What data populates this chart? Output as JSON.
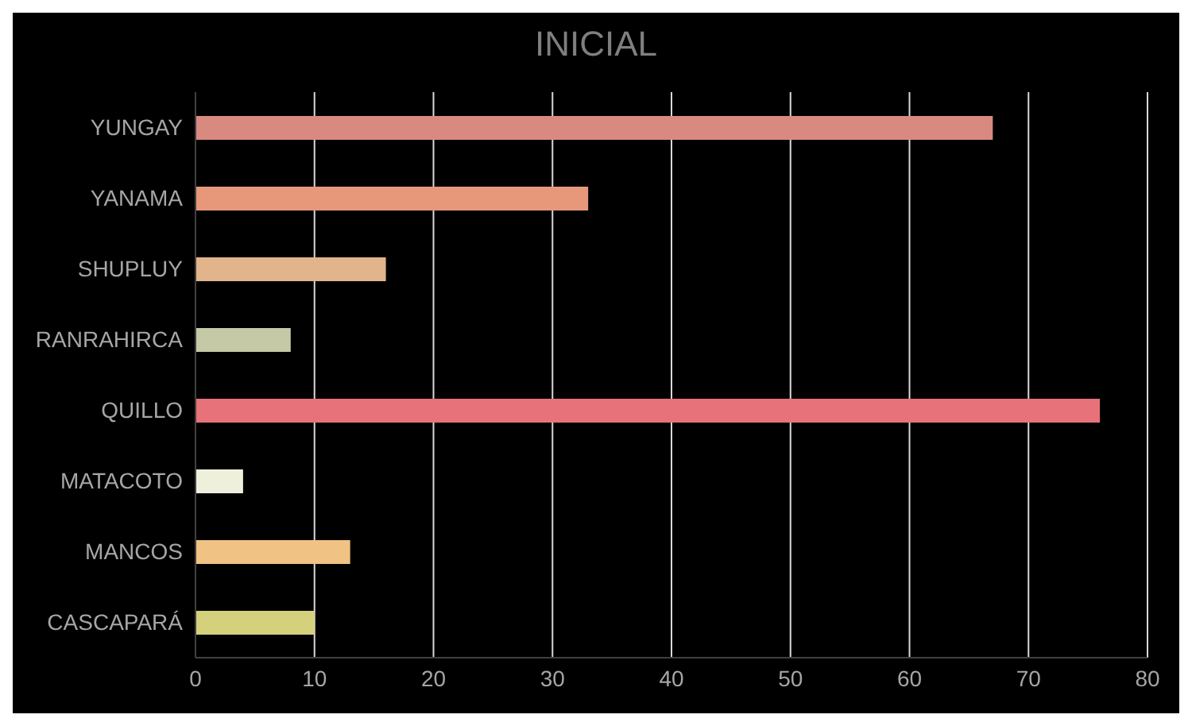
{
  "chart_data": {
    "type": "bar",
    "orientation": "horizontal",
    "title": "INICIAL",
    "categories": [
      "YUNGAY",
      "YANAMA",
      "SHUPLUY",
      "RANRAHIRCA",
      "QUILLO",
      "MATACOTO",
      "MANCOS",
      "CASCAPARÁ"
    ],
    "values": [
      67,
      33,
      16,
      8,
      76,
      4,
      13,
      10
    ],
    "colors": [
      "#d98a80",
      "#e8987a",
      "#e2b48c",
      "#c6c9a6",
      "#e8727a",
      "#eef0dc",
      "#f0c284",
      "#d4d07c"
    ],
    "xlim": [
      0,
      80
    ],
    "xticks": [
      0,
      10,
      20,
      30,
      40,
      50,
      60,
      70,
      80
    ],
    "grid": "x",
    "legend": false
  }
}
